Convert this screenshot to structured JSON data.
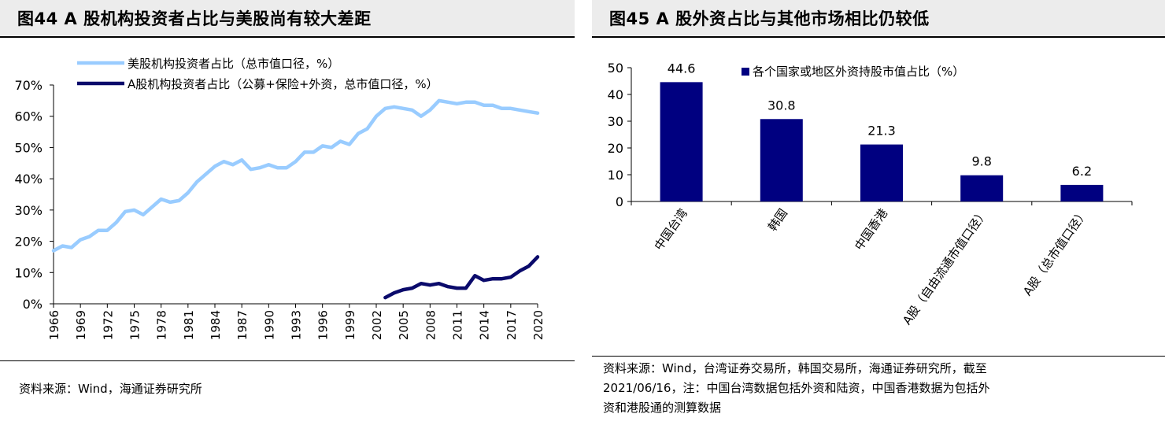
{
  "chart_data": [
    {
      "type": "line",
      "title": "图44 A 股机构投资者占比与美股尚有较大差距",
      "x_ticks": [
        "1966",
        "1969",
        "1972",
        "1975",
        "1978",
        "1981",
        "1984",
        "1987",
        "1990",
        "1993",
        "1996",
        "1999",
        "2002",
        "2005",
        "2008",
        "2011",
        "2014",
        "2017",
        "2020"
      ],
      "y_ticks": [
        "0%",
        "10%",
        "20%",
        "30%",
        "40%",
        "50%",
        "60%",
        "70%"
      ],
      "ylim": [
        0,
        70
      ],
      "xlim": [
        1966,
        2020
      ],
      "legend_position": "top-left",
      "grid": false,
      "series": [
        {
          "name": "美股机构投资者占比（总市值口径，%）",
          "color": "#99ccff",
          "x": [
            1966,
            1967,
            1968,
            1969,
            1970,
            1971,
            1972,
            1973,
            1974,
            1975,
            1976,
            1977,
            1978,
            1979,
            1980,
            1981,
            1982,
            1983,
            1984,
            1985,
            1986,
            1987,
            1988,
            1989,
            1990,
            1991,
            1992,
            1993,
            1994,
            1995,
            1996,
            1997,
            1998,
            1999,
            2000,
            2001,
            2002,
            2003,
            2004,
            2005,
            2006,
            2007,
            2008,
            2009,
            2010,
            2011,
            2012,
            2013,
            2014,
            2015,
            2016,
            2017,
            2018,
            2019,
            2020
          ],
          "values": [
            17,
            18.5,
            18,
            20.5,
            21.5,
            23.5,
            23.5,
            26,
            29.5,
            30,
            28.5,
            31,
            33.5,
            32.5,
            33,
            35.5,
            39,
            41.5,
            44,
            45.5,
            44.5,
            46,
            43,
            43.5,
            44.5,
            43.5,
            43.5,
            45.5,
            48.5,
            48.5,
            50.5,
            50,
            52,
            51,
            54.5,
            56,
            60,
            62.5,
            63,
            62.5,
            62,
            60,
            62,
            65,
            64.5,
            64,
            64.5,
            64.5,
            63.5,
            63.5,
            62.5,
            62.5,
            62,
            61.5,
            61
          ]
        },
        {
          "name": "A股机构投资者占比（公募+保险+外资，总市值口径，%）",
          "color": "#0a0a6b",
          "x": [
            2003,
            2004,
            2005,
            2006,
            2007,
            2008,
            2009,
            2010,
            2011,
            2012,
            2013,
            2014,
            2015,
            2016,
            2017,
            2018,
            2019,
            2020
          ],
          "values": [
            2,
            3.5,
            4.5,
            5,
            6.5,
            6,
            6.5,
            5.5,
            5,
            5,
            9,
            7.5,
            8,
            8,
            8.5,
            10.5,
            12,
            15
          ]
        }
      ]
    },
    {
      "type": "bar",
      "title": "图45 A 股外资占比与其他市场相比仍较低",
      "categories": [
        "中国台湾",
        "韩国",
        "中国香港",
        "A股（自由流通市值口径）",
        "A股（总市值口径）"
      ],
      "series": [
        {
          "name": "各个国家或地区外资持股市值占比（%）",
          "color": "#000080",
          "values": [
            44.6,
            30.8,
            21.3,
            9.8,
            6.2
          ]
        }
      ],
      "data_labels": [
        "44.6",
        "30.8",
        "21.3",
        "9.8",
        "6.2"
      ],
      "y_ticks": [
        "0",
        "10",
        "20",
        "30",
        "40",
        "50"
      ],
      "ylim": [
        0,
        50
      ],
      "legend_position": "top",
      "grid": false
    }
  ],
  "sources": {
    "left": "资料来源：Wind，海通证券研究所",
    "right_line1": "资料来源：Wind，台湾证券交易所，韩国交易所，海通证券研究所，截至",
    "right_line2": "2021/06/16，注：中国台湾数据包括外资和陆资，中国香港数据为包括外",
    "right_line3": "资和港股通的测算数据"
  }
}
